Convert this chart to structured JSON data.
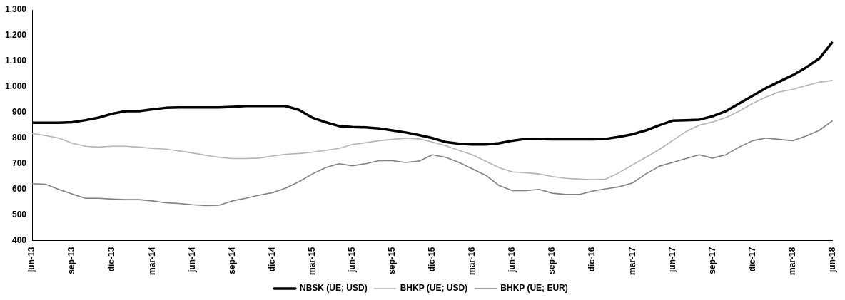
{
  "chart_data": {
    "type": "line",
    "categories": [
      "jun-13",
      null,
      null,
      "sep-13",
      null,
      null,
      "dic-13",
      null,
      null,
      "mar-14",
      null,
      null,
      "jun-14",
      null,
      null,
      "sep-14",
      null,
      null,
      "dic-14",
      null,
      null,
      "mar-15",
      null,
      null,
      "jun-15",
      null,
      null,
      "sep-15",
      null,
      null,
      "dic-15",
      null,
      null,
      "mar-16",
      null,
      null,
      "jun-16",
      null,
      null,
      "sep-16",
      null,
      null,
      "dic-16",
      null,
      null,
      "mar-17",
      null,
      null,
      "jun-17",
      null,
      null,
      "sep-17",
      null,
      null,
      "dic-17",
      null,
      null,
      "mar-18",
      null,
      null,
      "jun-18"
    ],
    "series": [
      {
        "name": "NBSK (UE; USD)",
        "color": "#000000",
        "values": [
          860,
          860,
          860,
          862,
          870,
          880,
          895,
          905,
          905,
          912,
          918,
          920,
          920,
          920,
          920,
          922,
          925,
          925,
          925,
          925,
          910,
          880,
          862,
          847,
          843,
          842,
          838,
          830,
          822,
          812,
          800,
          785,
          778,
          775,
          775,
          780,
          790,
          797,
          797,
          795,
          795,
          795,
          795,
          797,
          805,
          815,
          830,
          850,
          868,
          870,
          872,
          885,
          905,
          935,
          965,
          995,
          1020,
          1045,
          1075,
          1110,
          1175
        ]
      },
      {
        "name": "BHKP (UE; USD)",
        "color": "#b4b4b4",
        "values": [
          818,
          810,
          800,
          780,
          768,
          765,
          768,
          768,
          765,
          760,
          757,
          750,
          742,
          733,
          725,
          720,
          720,
          722,
          730,
          737,
          740,
          745,
          752,
          760,
          775,
          782,
          790,
          795,
          800,
          797,
          785,
          770,
          752,
          735,
          710,
          685,
          668,
          665,
          660,
          650,
          643,
          640,
          638,
          640,
          665,
          695,
          725,
          755,
          790,
          825,
          850,
          863,
          880,
          905,
          935,
          960,
          980,
          990,
          1005,
          1018,
          1025
        ]
      },
      {
        "name": "BHKP (UE; EUR)",
        "color": "#808080",
        "values": [
          622,
          620,
          600,
          582,
          565,
          565,
          562,
          560,
          560,
          555,
          548,
          545,
          540,
          537,
          538,
          555,
          565,
          577,
          587,
          605,
          630,
          660,
          685,
          700,
          692,
          700,
          712,
          712,
          705,
          710,
          735,
          725,
          705,
          680,
          655,
          615,
          595,
          595,
          600,
          585,
          580,
          580,
          593,
          602,
          610,
          625,
          660,
          690,
          705,
          720,
          735,
          722,
          735,
          765,
          790,
          800,
          795,
          790,
          808,
          830,
          868
        ]
      }
    ],
    "ylim": [
      400,
      1300
    ],
    "yticks": [
      400,
      500,
      600,
      700,
      800,
      900,
      {
        "value": 1000,
        "label": "1.000"
      },
      {
        "value": 1100,
        "label": "1.100"
      },
      {
        "value": 1200,
        "label": "1.200"
      },
      {
        "value": 1300,
        "label": "1.300"
      }
    ],
    "grid": false,
    "legend": "bottom",
    "marker": "none",
    "line_style": "solid"
  }
}
